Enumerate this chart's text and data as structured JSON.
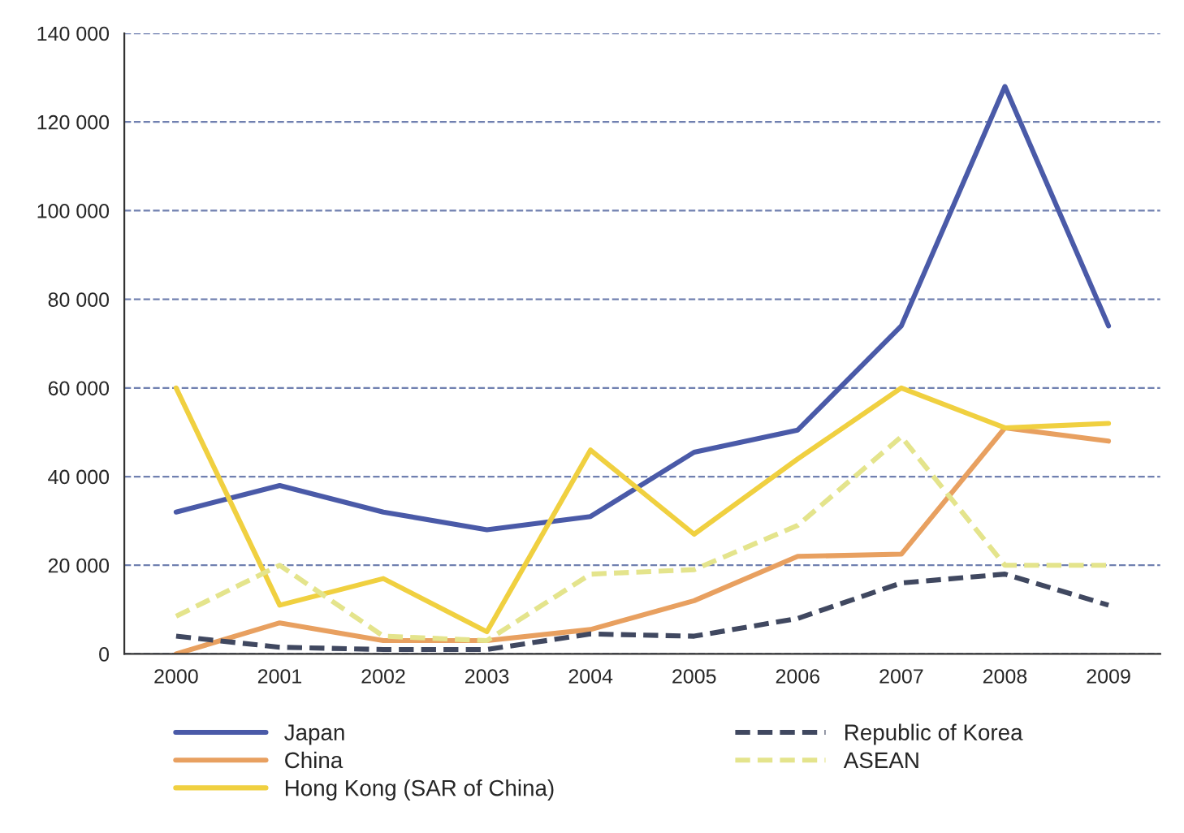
{
  "chart_data": {
    "type": "line",
    "categories": [
      "2000",
      "2001",
      "2002",
      "2003",
      "2004",
      "2005",
      "2006",
      "2007",
      "2008",
      "2009"
    ],
    "series": [
      {
        "name": "Japan",
        "color": "#4a5aa8",
        "line_style": "solid",
        "values": [
          32000,
          38000,
          32000,
          28000,
          31000,
          45500,
          50500,
          74000,
          128000,
          74000
        ]
      },
      {
        "name": "China",
        "color": "#e8a060",
        "line_style": "solid",
        "values": [
          0,
          7000,
          3000,
          3000,
          5500,
          12000,
          22000,
          22500,
          51000,
          48000
        ]
      },
      {
        "name": "Hong Kong (SAR of China)",
        "color": "#f0d040",
        "line_style": "solid",
        "values": [
          60000,
          11000,
          17000,
          5000,
          46000,
          27000,
          44000,
          60000,
          51000,
          52000
        ]
      },
      {
        "name": "Republic of Korea",
        "color": "#404860",
        "line_style": "dashed",
        "values": [
          4000,
          1500,
          1000,
          1000,
          4500,
          4000,
          8000,
          16000,
          18000,
          11000
        ]
      },
      {
        "name": "ASEAN",
        "color": "#e4e48c",
        "line_style": "dashed",
        "values": [
          8500,
          20000,
          4000,
          3000,
          18000,
          19000,
          29000,
          49000,
          20000,
          20000
        ]
      }
    ],
    "ylim": [
      0,
      140000
    ],
    "yticks": [
      {
        "value": 0,
        "label": "0"
      },
      {
        "value": 20000,
        "label": "20 000"
      },
      {
        "value": 40000,
        "label": "40 000"
      },
      {
        "value": 60000,
        "label": "60 000"
      },
      {
        "value": 80000,
        "label": "80 000"
      },
      {
        "value": 100000,
        "label": "100 000"
      },
      {
        "value": 120000,
        "label": "120 000"
      },
      {
        "value": 140000,
        "label": "140 000"
      }
    ],
    "grid": "y",
    "legend": "bottom",
    "marker": "none"
  }
}
